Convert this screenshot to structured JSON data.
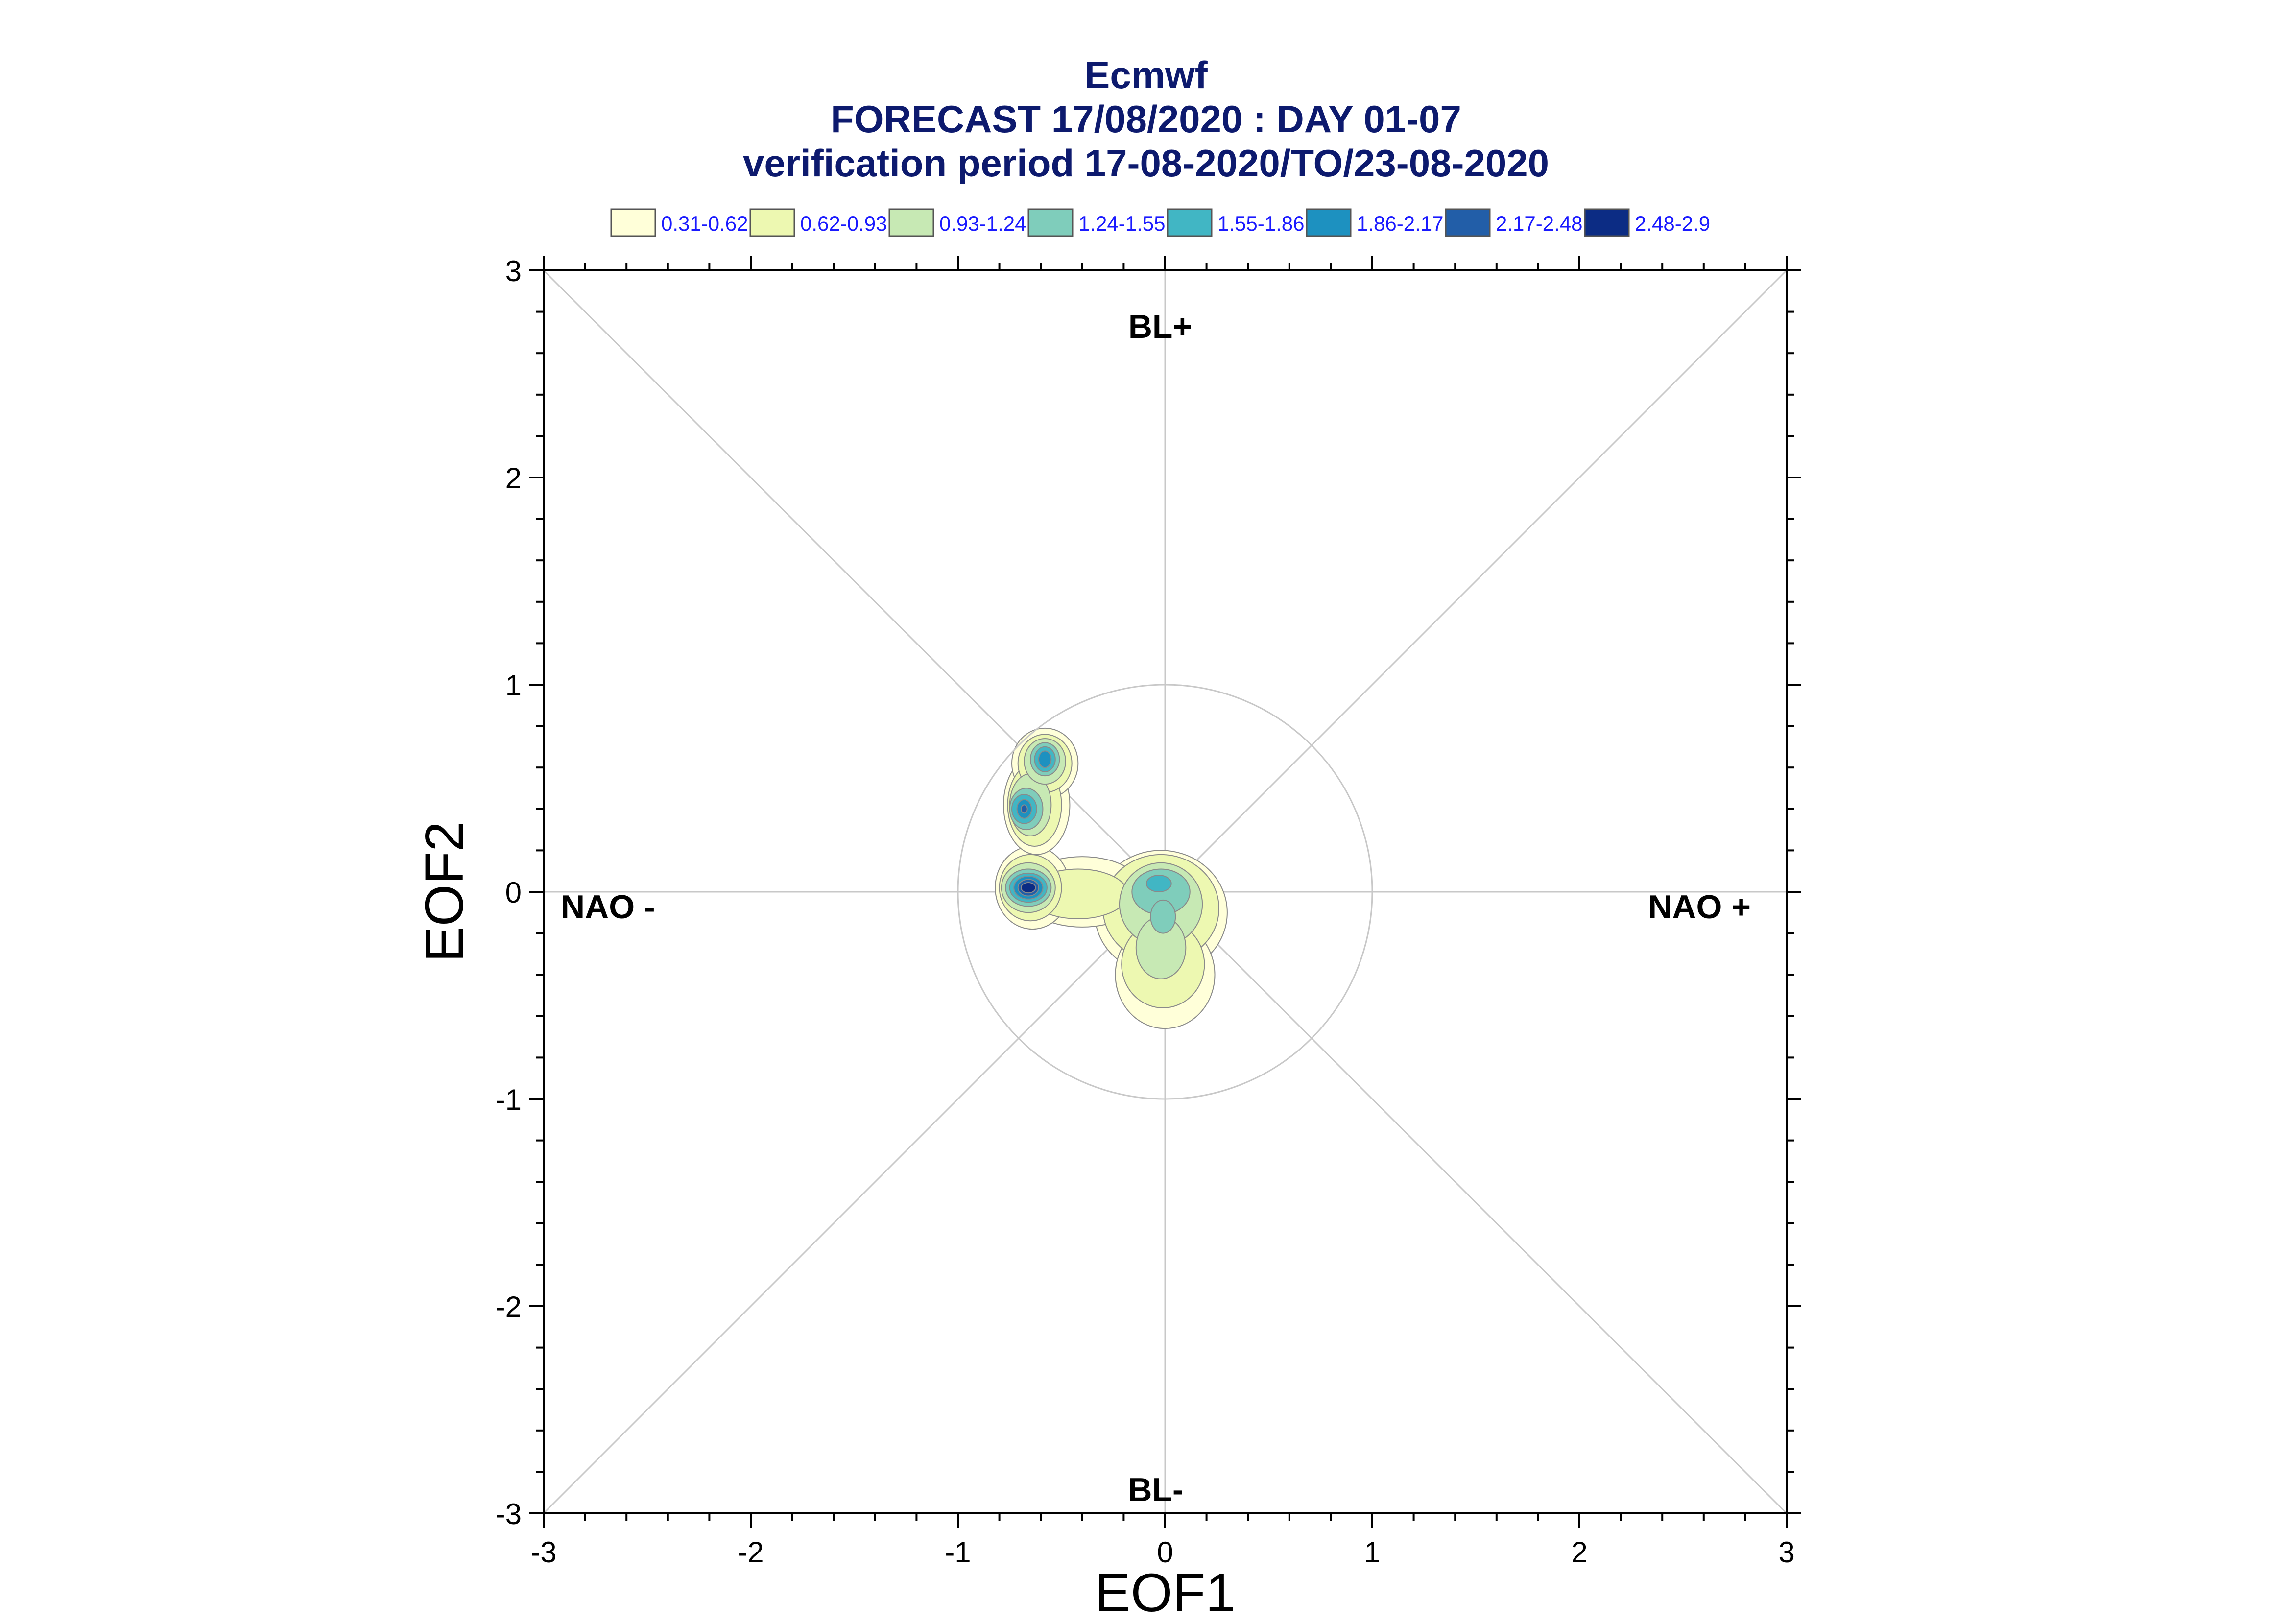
{
  "chart_data": {
    "type": "heatmap",
    "title_lines": [
      "Ecmwf",
      "FORECAST 17/08/2020 : DAY 01-07",
      "verification period 17-08-2020/TO/23-08-2020"
    ],
    "xlabel": "EOF1",
    "ylabel": "EOF2",
    "xlim": [
      -3,
      3
    ],
    "ylim": [
      -3,
      3
    ],
    "xticks": [
      "-3",
      "-2",
      "-1",
      "0",
      "1",
      "2",
      "3"
    ],
    "yticks": [
      "3",
      "2",
      "1",
      "0",
      "-1",
      "-2",
      "-3"
    ],
    "grid": "diagonals, axes and unit circle",
    "regime_labels": {
      "top": "BL+",
      "bottom": "BL-",
      "left": "NAO -",
      "right": "NAO +"
    },
    "legend": {
      "placement": "top",
      "entries": [
        {
          "label": "0.31-0.62",
          "color": "#ffffd9"
        },
        {
          "label": "0.62-0.93",
          "color": "#edf8b1"
        },
        {
          "label": "0.93-1.24",
          "color": "#c7e9b4"
        },
        {
          "label": "1.24-1.55",
          "color": "#7fcdbb"
        },
        {
          "label": "1.55-1.86",
          "color": "#41b6c4"
        },
        {
          "label": "1.86-2.17",
          "color": "#1d91c0"
        },
        {
          "label": "2.17-2.48",
          "color": "#225ea8"
        },
        {
          "label": "2.48-2.9",
          "color": "#0c2c84"
        }
      ]
    },
    "density_centers": [
      {
        "x": -0.66,
        "y": 0.02,
        "peak": "2.48-2.9"
      },
      {
        "x": -0.58,
        "y": 0.64,
        "peak": "1.86-2.17"
      },
      {
        "x": -0.68,
        "y": 0.4,
        "peak": "2.17-2.48"
      },
      {
        "x": -0.02,
        "y": 0.05,
        "peak": "1.55-1.86"
      },
      {
        "x": -0.02,
        "y": -0.3,
        "peak": "0.93-1.24"
      }
    ]
  }
}
